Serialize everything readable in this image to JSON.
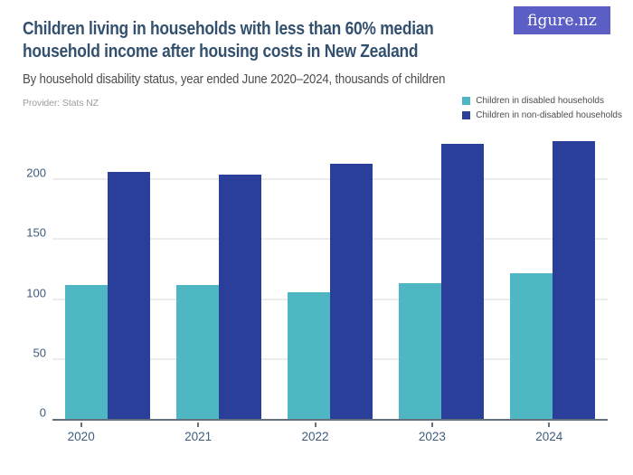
{
  "header": {
    "title_line1": "Children living in households with less than 60% median",
    "title_line2": "household income after housing costs in New Zealand",
    "subtitle": "By household disability status, year ended June 2020–2024, thousands of children",
    "provider": "Provider: Stats NZ",
    "logo_text": "figure.nz"
  },
  "colors": {
    "teal": "#4fb7c3",
    "navy": "#2a3f99",
    "logo_background": "#5b5fc5",
    "title_text": "#33516f",
    "axis_text": "#3e5c7e",
    "gridline": "#ececec"
  },
  "legend": [
    {
      "label": "Children in disabled households",
      "color": "#4fb7c3"
    },
    {
      "label": "Children in non-disabled households",
      "color": "#2a3f99"
    }
  ],
  "chart_data": {
    "type": "bar",
    "title": "Children living in households with less than 60% median household income after housing costs in New Zealand",
    "subtitle": "By household disability status, year ended June 2020–2024, thousands of children",
    "categories": [
      "2020",
      "2021",
      "2022",
      "2023",
      "2024"
    ],
    "series": [
      {
        "name": "Children in disabled households",
        "color": "#4fb7c3",
        "values": [
          112,
          112,
          106,
          113,
          122
        ]
      },
      {
        "name": "Children in non-disabled households",
        "color": "#2a3f99",
        "values": [
          206,
          204,
          213,
          230,
          232
        ]
      }
    ],
    "xlabel": "",
    "ylabel": "thousands of children",
    "y_ticks": [
      0,
      50,
      100,
      150,
      200
    ],
    "ylim": [
      0,
      238
    ],
    "grid": true,
    "legend_position": "top-right",
    "provider": "Stats NZ"
  }
}
